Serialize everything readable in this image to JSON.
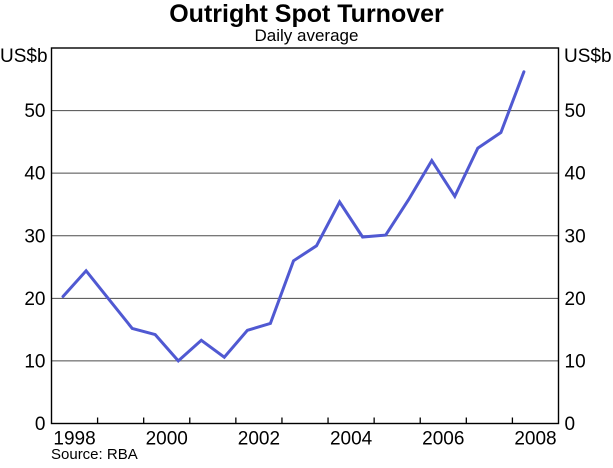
{
  "chart_data": {
    "type": "line",
    "title": "Outright Spot Turnover",
    "subtitle": "Daily average",
    "ylabel_left": "US$b",
    "ylabel_right": "US$b",
    "source": "Source: RBA",
    "frequency": "half-yearly",
    "name": "Outright spot turnover, daily average",
    "x": [
      1998.25,
      1998.75,
      1999.25,
      1999.75,
      2000.25,
      2000.75,
      2001.25,
      2001.75,
      2002.25,
      2002.75,
      2003.25,
      2003.75,
      2004.25,
      2004.75,
      2005.25,
      2005.75,
      2006.25,
      2006.75,
      2007.25,
      2007.75,
      2008.25
    ],
    "values": [
      20.3,
      24.4,
      19.8,
      15.2,
      14.2,
      10.0,
      13.3,
      10.6,
      14.9,
      16.0,
      26.0,
      28.4,
      35.4,
      29.8,
      30.1,
      35.8,
      42.0,
      36.3,
      44.0,
      46.5,
      56.2
    ],
    "xlim": [
      1998,
      2009
    ],
    "ylim": [
      0,
      60
    ],
    "yticks": [
      0,
      10,
      20,
      30,
      40,
      50
    ],
    "ytick_labels": [
      "0",
      "10",
      "20",
      "30",
      "40",
      "50"
    ],
    "ytick_label_sides": "both",
    "xtick_labels": [
      "1998",
      "2000",
      "2002",
      "2004",
      "2006",
      "2008"
    ],
    "xtick_label_years": [
      1998,
      2000,
      2002,
      2004,
      2006,
      2008
    ],
    "grid": true,
    "legend_position": "none",
    "line_color": "#5059d2",
    "gridline_color": "#4b4b4b",
    "axis_color": "#000000"
  }
}
